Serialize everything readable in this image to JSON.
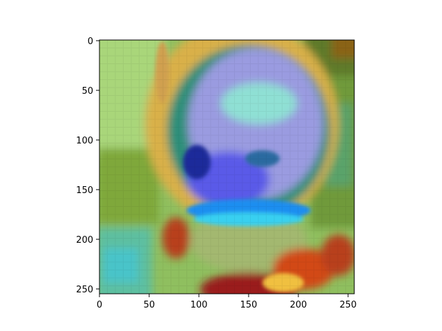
{
  "figure": {
    "image_description": "Pixelated heatmap overlay (jet colormap) on a face image",
    "x_ticks": [
      "0",
      "50",
      "100",
      "150",
      "200",
      "250"
    ],
    "y_ticks": [
      "0",
      "50",
      "100",
      "150",
      "200",
      "250"
    ],
    "xlim": [
      0,
      256
    ],
    "ylim": [
      256,
      0
    ],
    "colors": {
      "axis": "#000000",
      "background": "#ffffff"
    }
  }
}
